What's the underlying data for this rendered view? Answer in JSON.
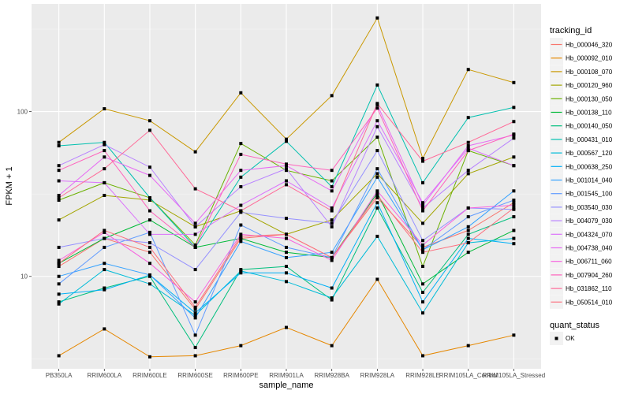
{
  "chart_data": {
    "type": "line",
    "title": "",
    "xlabel": "sample_name",
    "ylabel": "FPKM + 1",
    "yscale": "log10",
    "ylim": [
      2.75,
      450
    ],
    "yticks": [
      10,
      100
    ],
    "ytick_labels": [
      "10",
      "100"
    ],
    "grid": true,
    "legend_position": "right",
    "categories": [
      "PB350LA",
      "RRIM600LA",
      "RRIM600LE",
      "RRIM600SE",
      "RRIM600PE",
      "RRIM901LA",
      "RRIM928BA",
      "RRIM928LA",
      "RRIM928LE",
      "RRIM105LA_Control",
      "RRIM105LA_Stressed"
    ],
    "color_legend_title": "tracking_id",
    "shape_legend_title": "quant_status",
    "shape_legend_items": [
      "OK"
    ],
    "series": [
      {
        "name": "Hb_000046_320",
        "color": "#F8766D",
        "values": [
          11.5,
          17.0,
          14.0,
          6.3,
          17.0,
          18.0,
          13.0,
          30.0,
          15.0,
          19.0,
          28.0
        ]
      },
      {
        "name": "Hb_000092_010",
        "color": "#E58700",
        "values": [
          3.3,
          4.8,
          3.25,
          3.3,
          3.8,
          4.9,
          3.8,
          9.6,
          3.3,
          3.8,
          4.4
        ]
      },
      {
        "name": "Hb_000108_070",
        "color": "#C99800",
        "values": [
          65,
          104,
          88,
          57,
          130,
          68,
          125,
          370,
          52,
          180,
          150
        ]
      },
      {
        "name": "Hb_000120_960",
        "color": "#A3A500",
        "values": [
          22,
          31,
          29,
          20,
          25,
          18,
          22,
          42,
          21,
          42,
          53
        ]
      },
      {
        "name": "Hb_000130_050",
        "color": "#6BB100",
        "values": [
          29,
          37,
          30,
          15.5,
          64,
          44,
          38,
          70,
          11.5,
          58,
          47
        ]
      },
      {
        "name": "Hb_000138_110",
        "color": "#00BA38",
        "values": [
          12,
          17,
          22,
          15,
          17,
          14,
          13,
          32,
          9.0,
          14.0,
          19.0
        ]
      },
      {
        "name": "Hb_000140_050",
        "color": "#00BF7D",
        "values": [
          7.0,
          8.5,
          10.0,
          3.7,
          11.0,
          11.5,
          7.2,
          26,
          8.0,
          18.0,
          23.0
        ]
      },
      {
        "name": "Hb_000431_010",
        "color": "#00C0AF",
        "values": [
          62,
          65,
          30,
          15,
          40,
          66,
          35,
          145,
          37,
          92,
          106
        ]
      },
      {
        "name": "Hb_000567_120",
        "color": "#00BCD8",
        "values": [
          6.8,
          11.0,
          9.0,
          5.8,
          10.8,
          9.3,
          7.4,
          17.5,
          6.0,
          16.0,
          17.0
        ]
      },
      {
        "name": "Hb_000638_250",
        "color": "#00B0F6",
        "values": [
          7.8,
          8.3,
          10.2,
          6.0,
          10.5,
          10.5,
          8.5,
          28,
          7.0,
          17.0,
          15.8
        ]
      },
      {
        "name": "Hb_001014_040",
        "color": "#35A2FF",
        "values": [
          10.0,
          12.0,
          10.2,
          5.6,
          16.3,
          13.0,
          14.0,
          40,
          14.5,
          20.0,
          33.0
        ]
      },
      {
        "name": "Hb_001545_100",
        "color": "#619CFF",
        "values": [
          9.0,
          15.0,
          18.5,
          4.4,
          20.5,
          15.0,
          13.0,
          45,
          14.5,
          23.0,
          29.0
        ]
      },
      {
        "name": "Hb_003540_030",
        "color": "#9590FF",
        "values": [
          15.0,
          17.0,
          16.0,
          11.0,
          24.5,
          22.5,
          21.0,
          58,
          16.5,
          26.0,
          25.5
        ]
      },
      {
        "name": "Hb_004079_030",
        "color": "#B983FF",
        "values": [
          47,
          63,
          46,
          20,
          35,
          45,
          20,
          81,
          26,
          44,
          69
        ]
      },
      {
        "name": "Hb_004324_070",
        "color": "#DB72FB",
        "values": [
          38,
          37,
          18,
          18,
          27,
          38,
          26,
          88,
          28,
          60,
          47
        ]
      },
      {
        "name": "Hb_004738_040",
        "color": "#E76BF3",
        "values": [
          31,
          53,
          41,
          21,
          44,
          47,
          33,
          110,
          27,
          62,
          72
        ]
      },
      {
        "name": "Hb_006711_060",
        "color": "#F763E0",
        "values": [
          12.5,
          18.5,
          12.0,
          7.0,
          18.0,
          17.0,
          12.5,
          33,
          15.5,
          26.0,
          27.0
        ]
      },
      {
        "name": "Hb_007904_260",
        "color": "#FF62BC",
        "values": [
          44,
          58,
          25,
          15,
          55,
          48,
          44,
          105,
          25,
          58,
          73
        ]
      },
      {
        "name": "Hb_031862_110",
        "color": "#FF6A98",
        "values": [
          30,
          45,
          77,
          34,
          25,
          36,
          25,
          112,
          50,
          65,
          87
        ]
      },
      {
        "name": "Hb_050514_010",
        "color": "#FC717F",
        "values": [
          12.0,
          19.0,
          15.0,
          6.5,
          17.5,
          18.0,
          13.0,
          31,
          14.0,
          16.0,
          26.0
        ]
      }
    ]
  }
}
